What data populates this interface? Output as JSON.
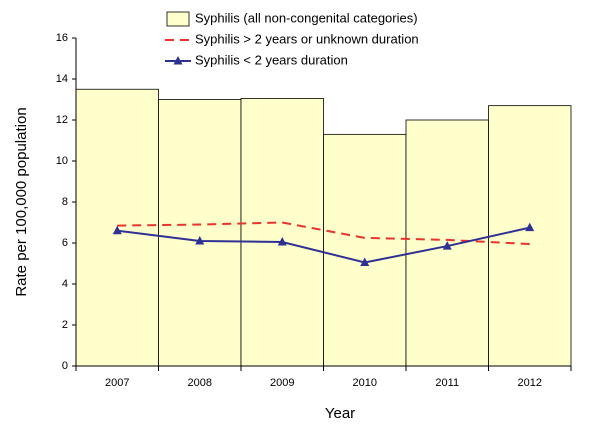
{
  "chart_data": {
    "type": "bar",
    "x_label": "Year",
    "y_label": "Rate per 100,000 population",
    "categories": [
      "2007",
      "2008",
      "2009",
      "2010",
      "2011",
      "2012"
    ],
    "series": [
      {
        "name": "Syphilis (all non-congenital categories)",
        "type": "bar",
        "color": "#ffffcc",
        "values": [
          13.5,
          13.0,
          13.05,
          11.3,
          12.0,
          12.7
        ]
      },
      {
        "name": "Syphilis > 2 years or unknown duration",
        "type": "line",
        "dashed": true,
        "color": "#e8332e",
        "values": [
          6.85,
          6.9,
          7.0,
          6.25,
          6.15,
          5.95
        ]
      },
      {
        "name": "Syphilis < 2 years duration",
        "type": "line",
        "marker": "triangle",
        "color": "#2e3192",
        "values": [
          6.6,
          6.1,
          6.05,
          5.05,
          5.85,
          6.75
        ]
      }
    ],
    "ylim": [
      0,
      16
    ],
    "yticks": [
      0,
      2,
      4,
      6,
      8,
      10,
      12,
      14,
      16
    ],
    "grid": false
  }
}
